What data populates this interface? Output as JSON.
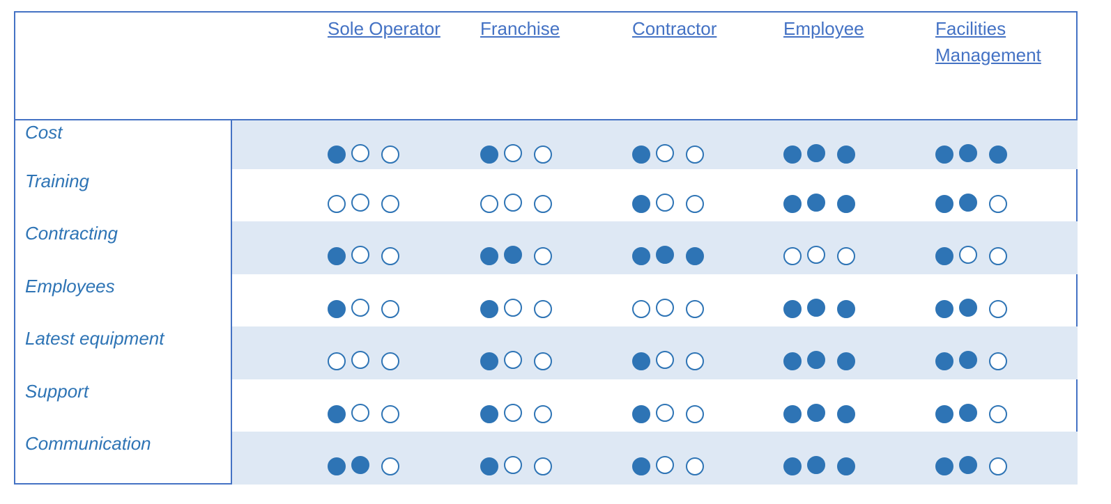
{
  "columns": [
    {
      "label": "Sole Operator"
    },
    {
      "label": "Franchise"
    },
    {
      "label": "Contractor"
    },
    {
      "label": "Employee"
    },
    {
      "label": "Facilities Management"
    }
  ],
  "rows": [
    {
      "label": "Cost",
      "ratings": [
        1,
        1,
        1,
        3,
        3
      ]
    },
    {
      "label": "Training",
      "ratings": [
        0,
        0,
        1,
        3,
        2
      ]
    },
    {
      "label": "Contracting",
      "ratings": [
        1,
        2,
        3,
        0,
        1
      ]
    },
    {
      "label": "Employees",
      "ratings": [
        1,
        1,
        0,
        3,
        2
      ]
    },
    {
      "label": "Latest equipment",
      "ratings": [
        0,
        1,
        1,
        3,
        2
      ]
    },
    {
      "label": "Support",
      "ratings": [
        1,
        1,
        1,
        3,
        2
      ]
    },
    {
      "label": "Communication",
      "ratings": [
        2,
        1,
        1,
        3,
        2
      ]
    }
  ],
  "colors": {
    "border": "#4472C4",
    "dot": "#2E74B5",
    "band": "#DEE8F4"
  }
}
